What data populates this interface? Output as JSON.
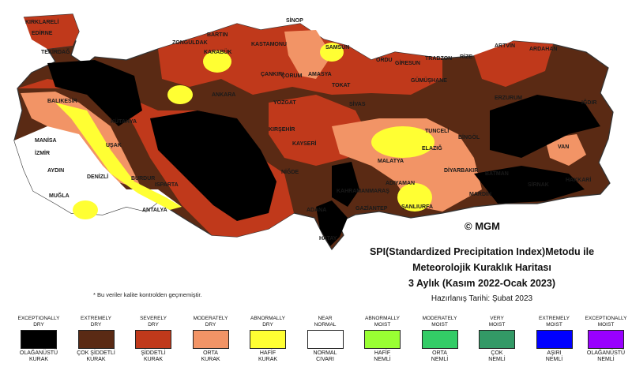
{
  "title": {
    "line1": "SPI(Standardized Precipitation Index)Metodu ile",
    "line2": "Meteorolojik Kuraklık Haritası",
    "line3": "3 Aylık (Kasım 2022-Ocak 2023)",
    "prepared": "Hazırlanış Tarihi: Şubat 2023"
  },
  "copyright": "© MGM",
  "note": "* Bu veriler kalite kontrolden geçmemiştir.",
  "cities": [
    "KIRKLARELİ",
    "EDİRNE",
    "TEKİRDAĞ",
    "BARTIN",
    "ZONGULDAK",
    "KASTAMONU",
    "SİNOP",
    "SAMSUN",
    "ORDU",
    "GİRESUN",
    "TRABZON",
    "RİZE",
    "ARTVİN",
    "ARDAHAN",
    "KARABÜK",
    "ÇANKIRI",
    "ÇORUM",
    "AMASYA",
    "TOKAT",
    "GÜMÜŞHANE",
    "ERZURUM",
    "IĞDIR",
    "ANKARA",
    "YOZGAT",
    "SİVAS",
    "BALIKESİR",
    "KÜTAHYA",
    "UŞAK",
    "MANİSA",
    "İZMİR",
    "AYDIN",
    "DENİZLİ",
    "MUĞLA",
    "BURDUR",
    "ISPARTA",
    "ANTALYA",
    "KIRŞEHİR",
    "KAYSERİ",
    "NİĞDE",
    "MALATYA",
    "ELAZIĞ",
    "TUNCELİ",
    "BİNGÖL",
    "VAN",
    "DİYARBAKIR",
    "BATMAN",
    "SİRNAK",
    "HAKKARİ",
    "MARDİN",
    "ADIYAMAN",
    "KAHRAMANMARAŞ",
    "GAZİANTEP",
    "ŞANLIURFA",
    "ADANA",
    "HATAY"
  ],
  "legend": [
    {
      "en1": "EXCEPTIONALLY",
      "en2": "DRY",
      "tr1": "OLAĞANÜSTÜ",
      "tr2": "KURAK",
      "color": "#000000"
    },
    {
      "en1": "EXTREMELY",
      "en2": "DRY",
      "tr1": "ÇOK ŞİDDETLİ",
      "tr2": "KURAK",
      "color": "#5a2a14"
    },
    {
      "en1": "SEVERELY",
      "en2": "DRY",
      "tr1": "ŞİDDETLİ",
      "tr2": "KURAK",
      "color": "#c0391b"
    },
    {
      "en1": "MODERATELY",
      "en2": "DRY",
      "tr1": "ORTA",
      "tr2": "KURAK",
      "color": "#f29466"
    },
    {
      "en1": "ABNORMALLY",
      "en2": "DRY",
      "tr1": "HAFİF",
      "tr2": "KURAK",
      "color": "#ffff33"
    },
    {
      "en1": "NEAR",
      "en2": "NORMAL",
      "tr1": "NORMAL",
      "tr2": "CIVARI",
      "color": "#ffffff"
    },
    {
      "en1": "ABNORMALLY",
      "en2": "MOIST",
      "tr1": "HAFİF",
      "tr2": "NEMLİ",
      "color": "#99ff33"
    },
    {
      "en1": "MODERATELY",
      "en2": "MOIST",
      "tr1": "ORTA",
      "tr2": "NEMLİ",
      "color": "#33cc66"
    },
    {
      "en1": "VERY",
      "en2": "MOIST",
      "tr1": "ÇOK",
      "tr2": "NEMLİ",
      "color": "#339966"
    },
    {
      "en1": "EXTREMELY",
      "en2": "MOIST",
      "tr1": "AŞIRI",
      "tr2": "NEMLİ",
      "color": "#0000ff"
    },
    {
      "en1": "EXCEPTIONALLY",
      "en2": "MOIST",
      "tr1": "OLAĞANÜSTÜ",
      "tr2": "NEMLİ",
      "color": "#9900ff"
    }
  ]
}
